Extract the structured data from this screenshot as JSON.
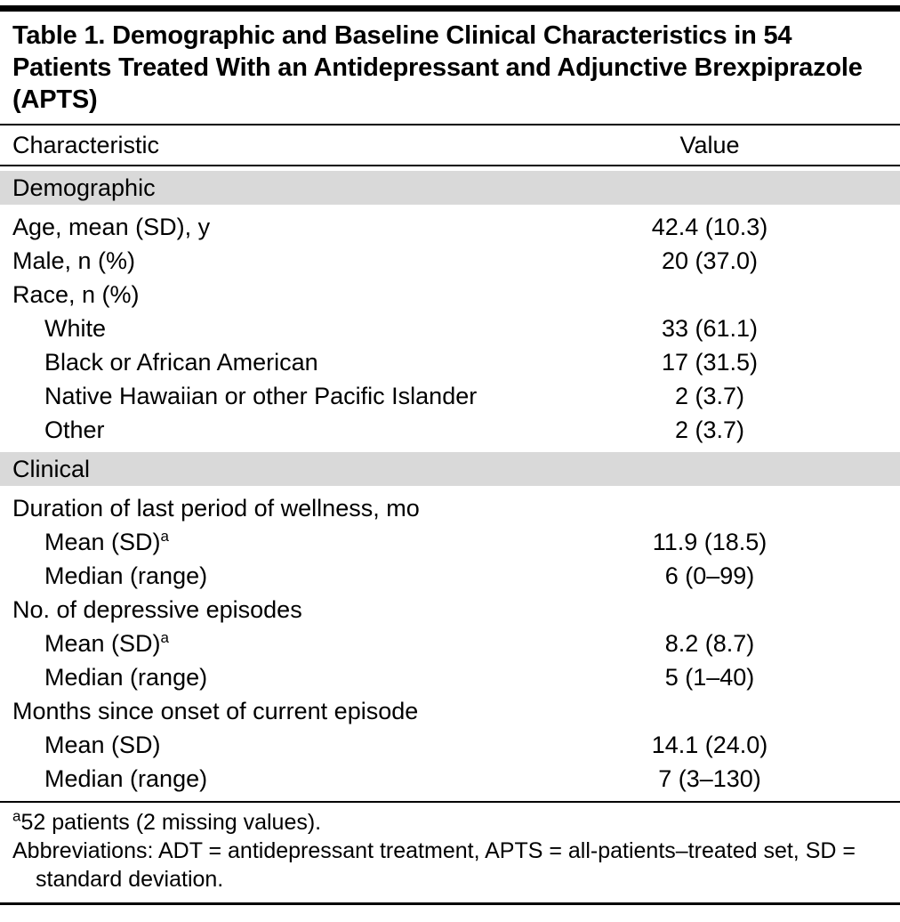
{
  "title": "Table 1. Demographic and Baseline Clinical Characteristics in 54 Patients Treated With an Antidepressant and Adjunctive Brexpiprazole (APTS)",
  "columns": [
    "Characteristic",
    "Value"
  ],
  "colors": {
    "section_band": "#d9d9d9",
    "rule": "#000000",
    "text": "#000000",
    "background": "#ffffff"
  },
  "sections": [
    {
      "header": "Demographic",
      "rows": [
        {
          "label": "Age, mean (SD), y",
          "value": "42.4 (10.3)"
        },
        {
          "label": "Male, n (%)",
          "value": "20 (37.0)"
        },
        {
          "label": "Race, n (%)",
          "value": ""
        },
        {
          "label": "White",
          "value": "33 (61.1)"
        },
        {
          "label": "Black or African American",
          "value": "17 (31.5)"
        },
        {
          "label": "Native Hawaiian or other Pacific Islander",
          "value": "2 (3.7)"
        },
        {
          "label": "Other",
          "value": "2 (3.7)"
        }
      ]
    },
    {
      "header": "Clinical",
      "rows": [
        {
          "label": "Duration of last period of wellness, mo",
          "value": ""
        },
        {
          "label": "Mean (SD)",
          "sup": "a",
          "value": "11.9 (18.5)"
        },
        {
          "label": "Median (range)",
          "value": "6 (0–99)"
        },
        {
          "label": "No. of depressive episodes",
          "value": ""
        },
        {
          "label": "Mean (SD)",
          "sup": "a",
          "value": "8.2 (8.7)"
        },
        {
          "label": "Median (range)",
          "value": "5 (1–40)"
        },
        {
          "label": "Months since onset of current episode",
          "value": ""
        },
        {
          "label": "Mean (SD)",
          "value": "14.1 (24.0)"
        },
        {
          "label": "Median (range)",
          "value": "7 (3–130)"
        }
      ]
    }
  ],
  "footnotes": [
    {
      "marker": "a",
      "text": "52 patients (2 missing values)."
    },
    {
      "text": "Abbreviations: ADT = antidepressant treatment, APTS = all-patients–treated set, SD = standard deviation."
    }
  ]
}
